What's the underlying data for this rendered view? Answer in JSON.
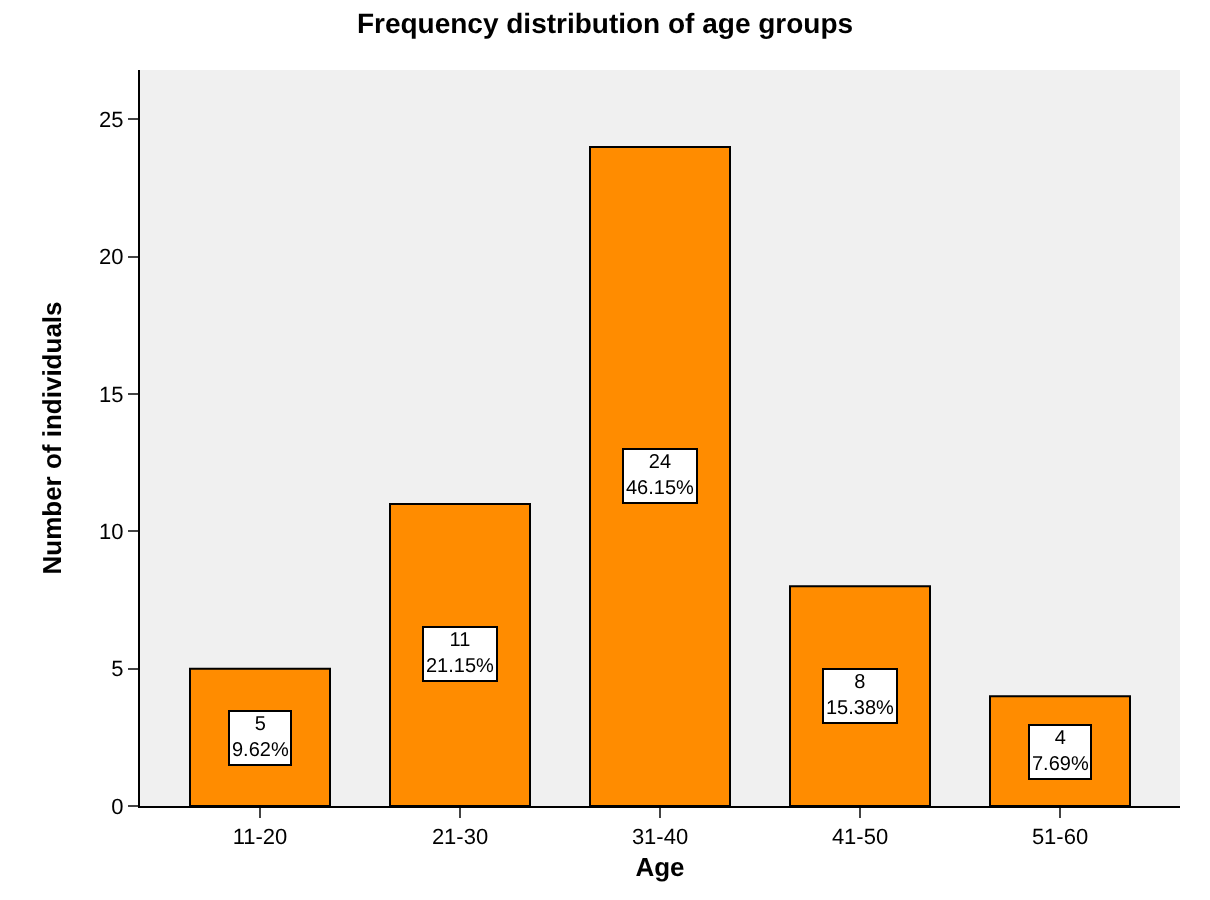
{
  "chart_data": {
    "type": "bar",
    "title": "Frequency distribution of age groups",
    "xlabel": "Age",
    "ylabel": "Number of individuals",
    "categories": [
      "11-20",
      "21-30",
      "31-40",
      "41-50",
      "51-60"
    ],
    "values": [
      5,
      11,
      24,
      8,
      4
    ],
    "value_labels": [
      "5\n9.62%",
      "11\n21.15%",
      "24\n46.15%",
      "8\n15.38%",
      "4\n7.69%"
    ],
    "color": "#ff8c00",
    "ylim": [
      0,
      26.8
    ],
    "yticks": [
      0,
      5,
      10,
      15,
      20,
      25
    ],
    "grid": false,
    "legend": false
  }
}
